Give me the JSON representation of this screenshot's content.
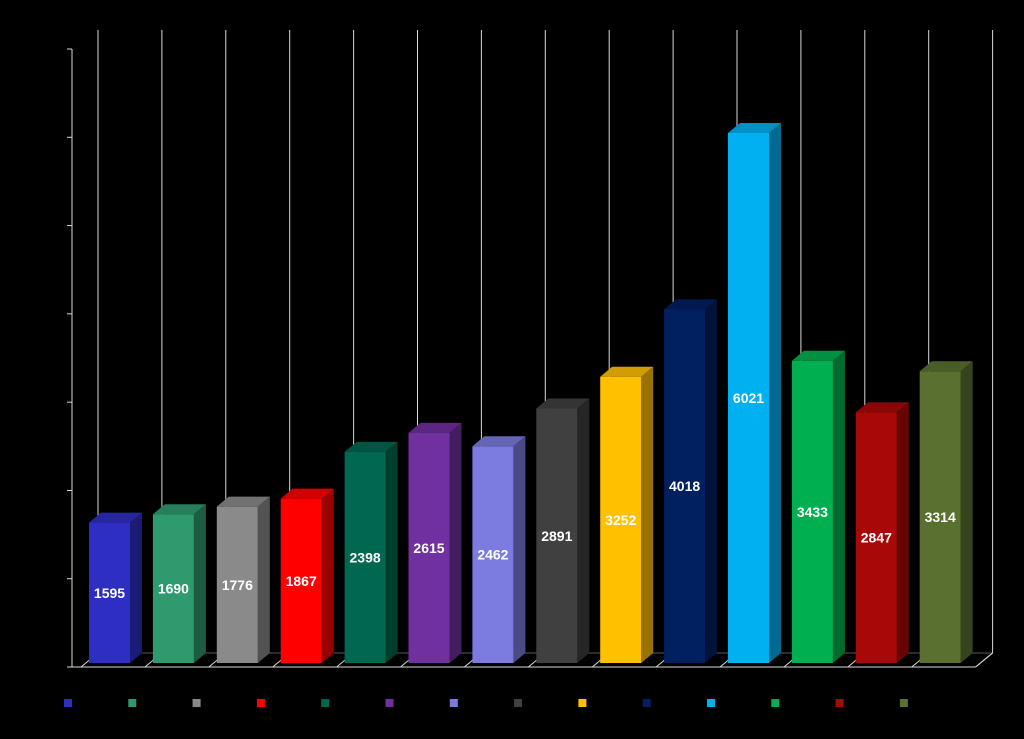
{
  "chart_data": {
    "type": "bar",
    "style": "3d-column",
    "background": "#000000",
    "grid": true,
    "legend_position": "bottom",
    "ylim": [
      0,
      7000
    ],
    "title": "",
    "xlabel": "",
    "ylabel": "",
    "categories": [
      "",
      "",
      "",
      "",
      "",
      "",
      "",
      "",
      "",
      "",
      "",
      "",
      "",
      ""
    ],
    "values": [
      1595,
      1690,
      1776,
      1867,
      2398,
      2615,
      2462,
      2891,
      3252,
      4018,
      6021,
      3433,
      2847,
      3314
    ],
    "value_labels": [
      "1595",
      "1690",
      "1776",
      "1867",
      "2398",
      "2615",
      "2462",
      "2891",
      "3252",
      "4018",
      "6021",
      "3433",
      "2847",
      "3314"
    ],
    "colors": [
      "#2E2EC4",
      "#2E9A6E",
      "#8A8A8A",
      "#FF0000",
      "#006850",
      "#7030A0",
      "#7B7BE0",
      "#404040",
      "#FFC000",
      "#002060",
      "#00B0F0",
      "#00B050",
      "#A80808",
      "#5A7030"
    ],
    "label_color": "#FFFFFF",
    "axis_color": "#D9D9D9"
  }
}
